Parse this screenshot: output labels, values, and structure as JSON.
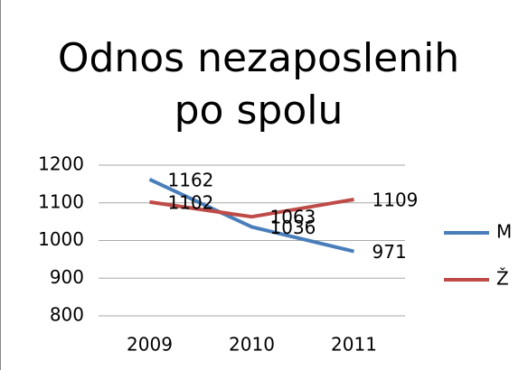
{
  "chart_data": {
    "type": "line",
    "title": "Odnos nezaposlenih po spolu",
    "categories": [
      "2009",
      "2010",
      "2011"
    ],
    "series": [
      {
        "name": "M",
        "color": "#4a7ebb",
        "values": [
          1162,
          1036,
          971
        ]
      },
      {
        "name": "Ž",
        "color": "#be4b48",
        "values": [
          1102,
          1063,
          1109
        ]
      }
    ],
    "ylim": [
      800,
      1200
    ],
    "yticks": [
      800,
      900,
      1000,
      1100,
      1200
    ],
    "grid": true,
    "legend": "right"
  }
}
